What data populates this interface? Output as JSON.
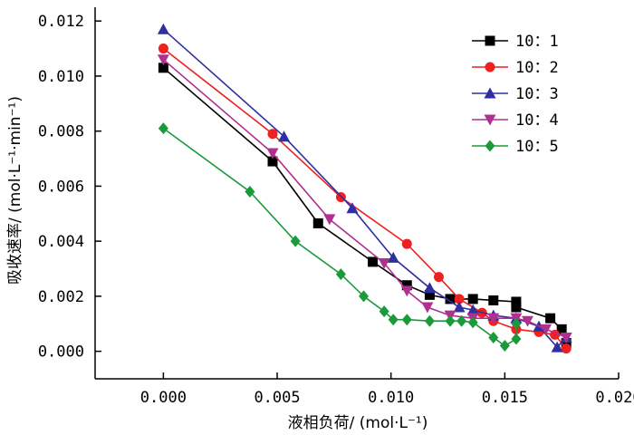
{
  "chart_data": {
    "type": "line",
    "xlabel": "液相负荷/ (mol·L⁻¹)",
    "ylabel": "吸收速率/ (mol·L⁻¹·min⁻¹)",
    "xlim": [
      -0.003,
      0.02
    ],
    "ylim": [
      -0.001,
      0.0125
    ],
    "x_ticks": [
      0.0,
      0.005,
      0.01,
      0.015,
      0.02
    ],
    "x_tick_labels": [
      "0.000",
      "0.005",
      "0.010",
      "0.015",
      "0.020"
    ],
    "y_ticks": [
      0.0,
      0.002,
      0.004,
      0.006,
      0.008,
      0.01,
      0.012
    ],
    "y_tick_labels": [
      "0.000",
      "0.002",
      "0.004",
      "0.006",
      "0.008",
      "0.010",
      "0.012"
    ],
    "grid": false,
    "legend_position": "top-right",
    "series": [
      {
        "name": "10：1",
        "color": "#000000",
        "marker": "square",
        "points": [
          [
            0.0,
            0.0103
          ],
          [
            0.0048,
            0.0069
          ],
          [
            0.0068,
            0.00465
          ],
          [
            0.0092,
            0.00325
          ],
          [
            0.0107,
            0.0024
          ],
          [
            0.0117,
            0.00205
          ],
          [
            0.0126,
            0.0019
          ],
          [
            0.0136,
            0.0019
          ],
          [
            0.0145,
            0.00185
          ],
          [
            0.0155,
            0.0018
          ],
          [
            0.0155,
            0.0016
          ],
          [
            0.017,
            0.0012
          ],
          [
            0.0175,
            0.0008
          ],
          [
            0.0177,
            0.0003
          ]
        ]
      },
      {
        "name": "10：2",
        "color": "#ee2020",
        "marker": "circle",
        "points": [
          [
            0.0,
            0.011
          ],
          [
            0.0048,
            0.0079
          ],
          [
            0.0078,
            0.0056
          ],
          [
            0.0107,
            0.0039
          ],
          [
            0.0121,
            0.0027
          ],
          [
            0.013,
            0.0019
          ],
          [
            0.014,
            0.0014
          ],
          [
            0.0145,
            0.0011
          ],
          [
            0.0155,
            0.0008
          ],
          [
            0.0165,
            0.0007
          ],
          [
            0.0172,
            0.0006
          ],
          [
            0.0177,
            0.0001
          ]
        ]
      },
      {
        "name": "10：3",
        "color": "#2e2fa0",
        "marker": "triangle",
        "points": [
          [
            0.0,
            0.0117
          ],
          [
            0.0053,
            0.0078
          ],
          [
            0.0083,
            0.0052
          ],
          [
            0.0101,
            0.0034
          ],
          [
            0.0117,
            0.0023
          ],
          [
            0.013,
            0.0016
          ],
          [
            0.0136,
            0.0015
          ],
          [
            0.0145,
            0.0013
          ],
          [
            0.0155,
            0.0012
          ],
          [
            0.0165,
            0.0009
          ],
          [
            0.0173,
            0.00015
          ],
          [
            0.0177,
            0.0005
          ]
        ]
      },
      {
        "name": "10：4",
        "color": "#b03090",
        "marker": "triangle-down",
        "points": [
          [
            0.0,
            0.0106
          ],
          [
            0.0048,
            0.0072
          ],
          [
            0.0073,
            0.0048
          ],
          [
            0.0097,
            0.0032
          ],
          [
            0.0107,
            0.0022
          ],
          [
            0.0116,
            0.0016
          ],
          [
            0.0126,
            0.0013
          ],
          [
            0.0136,
            0.0012
          ],
          [
            0.0145,
            0.0012
          ],
          [
            0.0155,
            0.0012
          ],
          [
            0.016,
            0.0011
          ],
          [
            0.0168,
            0.0008
          ],
          [
            0.0177,
            0.0005
          ]
        ]
      },
      {
        "name": "10：5",
        "color": "#1a9a3a",
        "marker": "diamond",
        "points": [
          [
            0.0,
            0.0081
          ],
          [
            0.0038,
            0.0058
          ],
          [
            0.0058,
            0.004
          ],
          [
            0.0078,
            0.0028
          ],
          [
            0.0088,
            0.002
          ],
          [
            0.0097,
            0.00145
          ],
          [
            0.0101,
            0.00115
          ],
          [
            0.0107,
            0.00115
          ],
          [
            0.0117,
            0.0011
          ],
          [
            0.0126,
            0.0011
          ],
          [
            0.0131,
            0.0011
          ],
          [
            0.0136,
            0.00105
          ],
          [
            0.0145,
            0.0005
          ],
          [
            0.015,
            0.0002
          ],
          [
            0.0155,
            0.00045
          ],
          [
            0.0155,
            0.001
          ]
        ]
      }
    ]
  }
}
